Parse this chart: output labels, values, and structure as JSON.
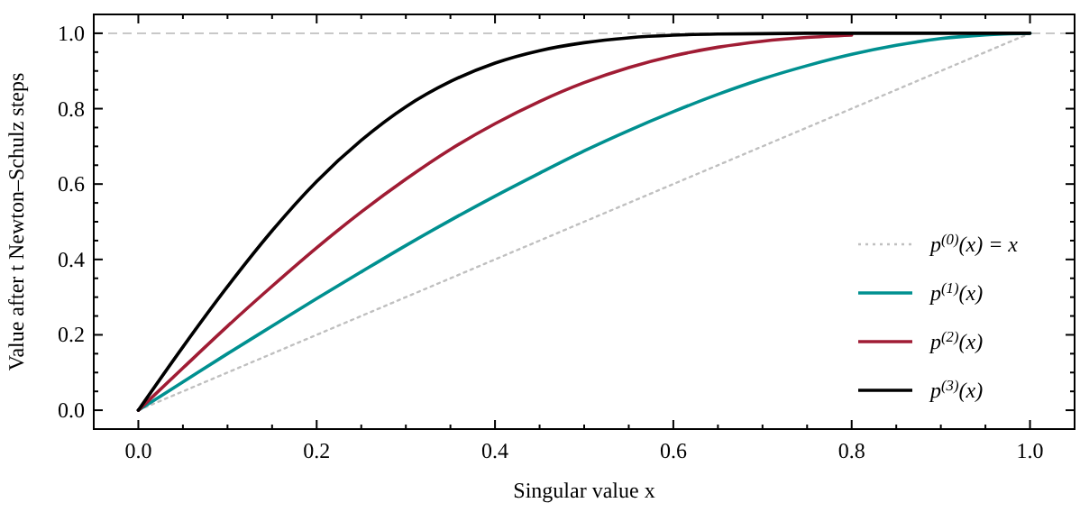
{
  "chart_data": {
    "type": "line",
    "xlabel": "Singular value x",
    "ylabel": "Value after t Newton–Schulz steps",
    "x": [
      0,
      0.05,
      0.1,
      0.15,
      0.2,
      0.25,
      0.3,
      0.35,
      0.4,
      0.45,
      0.5,
      0.55,
      0.6,
      0.65,
      0.7,
      0.75,
      0.8,
      0.85,
      0.9,
      0.95,
      1
    ],
    "series": [
      {
        "name": "p$^{(0)}$(x) = x",
        "color": "#c0c0c0",
        "line_style": "dotted",
        "values": [
          0,
          0.05,
          0.1,
          0.15,
          0.2,
          0.25,
          0.3,
          0.35,
          0.4,
          0.45,
          0.5,
          0.55,
          0.6,
          0.65,
          0.7,
          0.75,
          0.8,
          0.85,
          0.9,
          0.95,
          1
        ]
      },
      {
        "name": "p$^{(1)}$(x)",
        "color": "#009090",
        "line_style": "solid",
        "values": [
          0,
          0.075,
          0.15,
          0.223,
          0.296,
          0.367,
          0.437,
          0.504,
          0.568,
          0.629,
          0.688,
          0.742,
          0.792,
          0.838,
          0.879,
          0.914,
          0.944,
          0.968,
          0.986,
          0.996,
          1
        ]
      },
      {
        "name": "p$^{(2)}$(x)",
        "color": "#a01c34",
        "line_style": "solid",
        "values": [
          0,
          0.112,
          0.223,
          0.329,
          0.431,
          0.526,
          0.613,
          0.692,
          0.76,
          0.819,
          0.869,
          0.909,
          0.94,
          0.963,
          0.979,
          0.989,
          0.995,
          null,
          null,
          null,
          null
        ]
      },
      {
        "name": "p$^{(3)}$(x)",
        "color": "#000000",
        "line_style": "solid",
        "values": [
          0,
          0.168,
          0.328,
          0.476,
          0.607,
          0.716,
          0.805,
          0.872,
          0.921,
          0.954,
          0.975,
          0.988,
          0.995,
          0.998,
          0.999,
          1,
          1,
          1,
          1,
          1,
          1
        ]
      }
    ],
    "xlim": [
      -0.05,
      1.05
    ],
    "ylim": [
      -0.05,
      1.05
    ],
    "xticks": [
      {
        "value": 0,
        "label": "0.0"
      },
      {
        "value": 0.05,
        "label": null
      },
      {
        "value": 0.1,
        "label": null
      },
      {
        "value": 0.15,
        "label": null
      },
      0.2,
      {
        "value": 0.25,
        "label": null
      },
      {
        "value": 0.3,
        "label": null
      },
      {
        "value": 0.35,
        "label": null
      },
      0.4,
      {
        "value": 0.45,
        "label": null
      },
      {
        "value": 0.5,
        "label": null
      },
      {
        "value": 0.55,
        "label": null
      },
      0.6,
      {
        "value": 0.65,
        "label": null
      },
      {
        "value": 0.7,
        "label": null
      },
      {
        "value": 0.75,
        "label": null
      },
      0.8,
      {
        "value": 0.85,
        "label": null
      },
      {
        "value": 0.9,
        "label": null
      },
      {
        "value": 0.95,
        "label": null
      },
      {
        "value": 1,
        "label": "1.0"
      }
    ],
    "yticks": [
      {
        "value": 0,
        "label": "0.0"
      },
      {
        "value": 0.05,
        "label": null
      },
      {
        "value": 0.1,
        "label": null
      },
      {
        "value": 0.15,
        "label": null
      },
      0.2,
      {
        "value": 0.25,
        "label": null
      },
      {
        "value": 0.3,
        "label": null
      },
      {
        "value": 0.35,
        "label": null
      },
      0.4,
      {
        "value": 0.45,
        "label": null
      },
      {
        "value": 0.5,
        "label": null
      },
      {
        "value": 0.55,
        "label": null
      },
      0.6,
      {
        "value": 0.65,
        "label": null
      },
      {
        "value": 0.7,
        "label": null
      },
      {
        "value": 0.75,
        "label": null
      },
      0.8,
      {
        "value": 0.85,
        "label": null
      },
      {
        "value": 0.9,
        "label": null
      },
      {
        "value": 0.95,
        "label": null
      },
      {
        "value": 1,
        "label": "1.0"
      }
    ],
    "ref_lines": [
      {
        "axis": "y",
        "value": 1,
        "label": null,
        "color": "#c8c8c8",
        "line_style": "dashed"
      }
    ],
    "legend": "bottom right",
    "grid": false
  }
}
